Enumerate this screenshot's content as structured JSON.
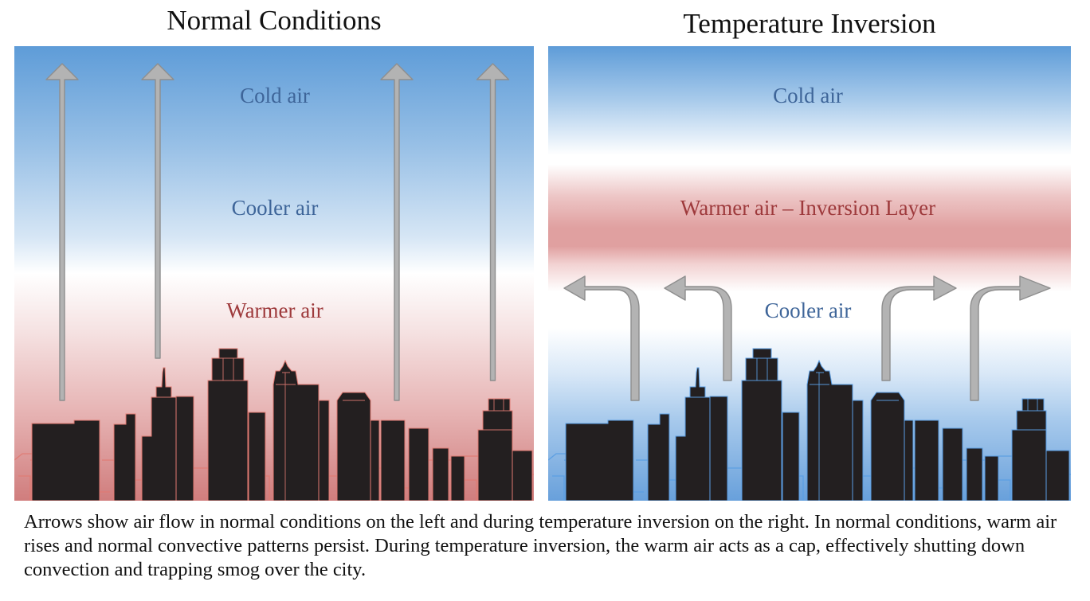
{
  "left": {
    "title": "Normal Conditions",
    "labels": {
      "cold": "Cold air",
      "cooler": "Cooler air",
      "warmer": "Warmer air"
    }
  },
  "right": {
    "title": "Temperature Inversion",
    "labels": {
      "cold": "Cold air",
      "inversion": "Warmer air – Inversion Layer",
      "cooler": "Cooler air"
    }
  },
  "caption": "Arrows show air flow in normal conditions on the left and during temperature inversion on the right. In normal conditions, warm air rises and normal convective patterns persist. During temperature inversion, the warm air acts as a cap, effectively shutting down convection and trapping smog over the city.",
  "colors": {
    "cold_text": "#3e6599",
    "warm_text": "#9e3a3c",
    "arrow": "#b3b3b3",
    "skyline_fill": "#231f20",
    "skyline_outline_left": "#e07a72",
    "skyline_outline_right": "#5b9ee3"
  }
}
